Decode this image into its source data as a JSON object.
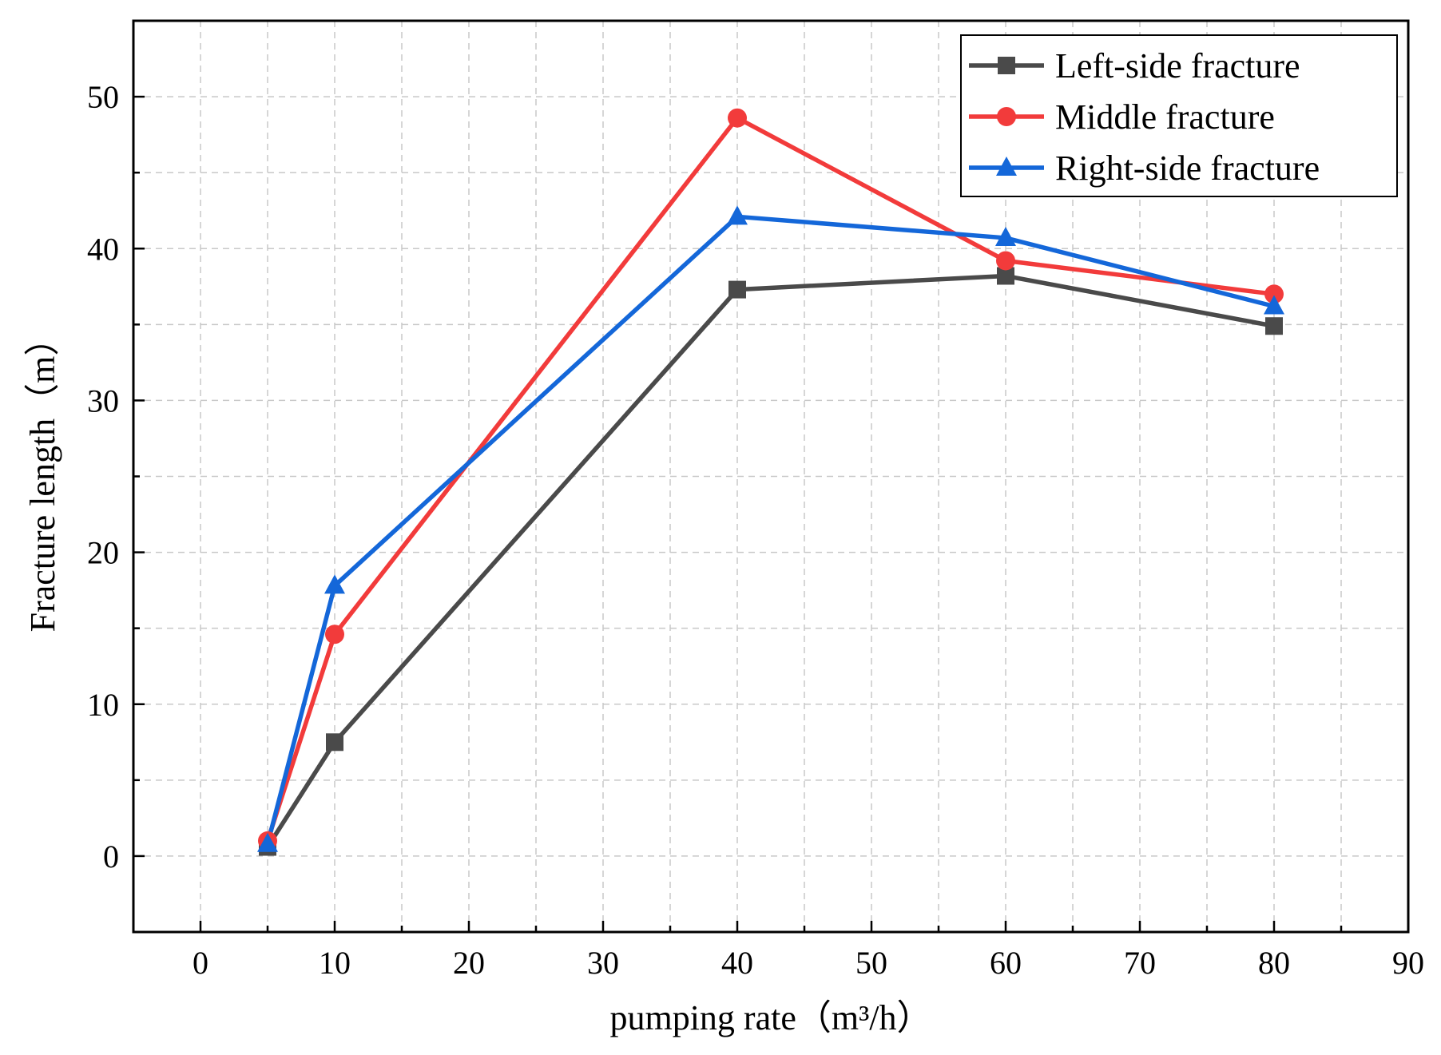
{
  "chart_data": {
    "type": "line",
    "title": "",
    "xlabel": "pumping rate（m³/h）",
    "ylabel": "Fracture length（m）",
    "xlim": [
      -5,
      90
    ],
    "ylim": [
      -5,
      55
    ],
    "xticks": [
      0,
      10,
      20,
      30,
      40,
      50,
      60,
      70,
      80,
      90
    ],
    "yticks": [
      0,
      10,
      20,
      30,
      40,
      50
    ],
    "x_minor_step": 5,
    "y_minor_step": 5,
    "grid": true,
    "legend_position": "top-right",
    "x": [
      5,
      10,
      40,
      60,
      80
    ],
    "series": [
      {
        "name": "Left-side fracture",
        "color": "#4a4a4a",
        "marker": "square",
        "values": [
          0.6,
          7.5,
          37.3,
          38.2,
          34.9
        ]
      },
      {
        "name": "Middle fracture",
        "color": "#f23b3b",
        "marker": "circle",
        "values": [
          1.0,
          14.6,
          48.6,
          39.2,
          37.0
        ]
      },
      {
        "name": "Right-side fracture",
        "color": "#1467d9",
        "marker": "triangle",
        "values": [
          0.8,
          17.8,
          42.1,
          40.7,
          36.2
        ]
      }
    ]
  }
}
